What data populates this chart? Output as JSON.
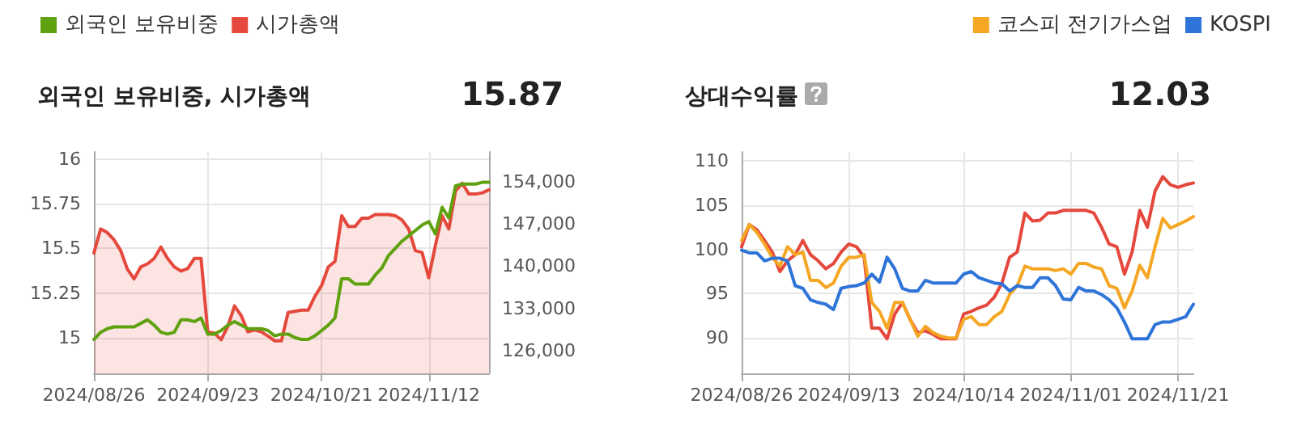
{
  "chart_data": [
    {
      "type": "line",
      "title": "외국인 보유비중, 시가총액",
      "annotations": [
        "15.87"
      ],
      "legend": "top left",
      "grid": true,
      "marker": "none",
      "line_style": "solid",
      "categories": [
        "2024/08/26",
        null,
        null,
        null,
        null,
        null,
        null,
        null,
        null,
        null,
        null,
        null,
        null,
        null,
        null,
        null,
        null,
        "2024/09/23",
        null,
        null,
        null,
        null,
        null,
        null,
        null,
        null,
        null,
        null,
        null,
        null,
        null,
        null,
        null,
        null,
        "2024/10/21",
        null,
        null,
        null,
        null,
        null,
        null,
        null,
        null,
        null,
        null,
        null,
        null,
        null,
        null,
        null,
        "2024/11/12",
        null,
        null,
        null,
        null,
        null,
        null,
        null,
        null,
        null
      ],
      "ylim": [
        14.8,
        16.04
      ],
      "yticks": [
        15,
        15.25,
        15.5,
        15.75,
        16
      ],
      "y2lim": [
        122200,
        159000
      ],
      "y2ticks": [
        {
          "value": 126000,
          "label": "126,000"
        },
        {
          "value": 133000,
          "label": "133,000"
        },
        {
          "value": 140000,
          "label": "140,000"
        },
        {
          "value": 147000,
          "label": "147,000"
        },
        {
          "value": 154000,
          "label": "154,000"
        }
      ],
      "series": [
        {
          "name": "외국인 보유비중",
          "color": "#5fa10f",
          "values": [
            14.99,
            15.03,
            15.05,
            15.06,
            15.06,
            15.06,
            15.06,
            15.08,
            15.1,
            15.07,
            15.03,
            15.02,
            15.03,
            15.1,
            15.1,
            15.09,
            15.11,
            15.02,
            15.02,
            15.04,
            15.07,
            15.09,
            15.07,
            15.05,
            15.05,
            15.05,
            15.04,
            15.01,
            15.02,
            15.02,
            15.0,
            14.99,
            14.99,
            15.01,
            15.04,
            15.07,
            15.11,
            15.33,
            15.33,
            15.3,
            15.3,
            15.3,
            15.35,
            15.39,
            15.46,
            15.5,
            15.54,
            15.57,
            15.6,
            15.63,
            15.65,
            15.58,
            15.73,
            15.67,
            15.85,
            15.86,
            15.86,
            15.86,
            15.87,
            15.87
          ]
        },
        {
          "name": "시가총액",
          "type": "area",
          "axis": "y2",
          "color": "#e5483c",
          "values": [
            142200,
            146200,
            145600,
            144400,
            142600,
            139500,
            137900,
            139900,
            140400,
            141300,
            143200,
            141300,
            139900,
            139200,
            139600,
            141300,
            141300,
            129100,
            128900,
            127800,
            130000,
            133400,
            131800,
            129100,
            129400,
            129100,
            128400,
            127600,
            127600,
            132300,
            132500,
            132700,
            132700,
            135000,
            136800,
            139900,
            140800,
            148400,
            146600,
            146600,
            148000,
            148000,
            148600,
            148600,
            148600,
            148400,
            147700,
            146200,
            142600,
            142300,
            138100,
            143500,
            148400,
            146200,
            152500,
            153800,
            152000,
            152000,
            152200,
            152700
          ]
        }
      ]
    },
    {
      "type": "line",
      "title": "상대수익률",
      "annotations": [
        "12.03"
      ],
      "legend": "top right",
      "grid": true,
      "marker": "none",
      "line_style": "solid",
      "categories": [
        "2024/08/26",
        null,
        null,
        null,
        null,
        null,
        null,
        null,
        null,
        null,
        null,
        null,
        null,
        null,
        "2024/09/13",
        null,
        null,
        null,
        null,
        null,
        null,
        null,
        null,
        null,
        null,
        null,
        null,
        null,
        null,
        "2024/10/14",
        null,
        null,
        null,
        null,
        null,
        null,
        null,
        null,
        null,
        null,
        null,
        null,
        null,
        "2024/11/01",
        null,
        null,
        null,
        null,
        null,
        null,
        null,
        null,
        null,
        null,
        null,
        null,
        null,
        "2024/11/21",
        null,
        null
      ],
      "ylim": [
        86,
        111
      ],
      "yticks": [
        90,
        95,
        100,
        105,
        110
      ],
      "series": [
        {
          "color": "#e5483c",
          "values": [
            100.3,
            102.8,
            102.2,
            101.0,
            99.7,
            97.5,
            98.7,
            99.4,
            101.0,
            99.4,
            98.7,
            97.8,
            98.4,
            99.7,
            100.6,
            100.3,
            99.1,
            91.1,
            91.1,
            89.9,
            92.7,
            94.0,
            92.1,
            90.6,
            90.8,
            90.4,
            89.9,
            89.9,
            89.9,
            92.7,
            93.0,
            93.4,
            93.7,
            94.6,
            96.2,
            99.1,
            99.7,
            104.1,
            103.2,
            103.3,
            104.1,
            104.1,
            104.4,
            104.4,
            104.4,
            104.4,
            104.1,
            102.5,
            100.6,
            100.3,
            97.2,
            99.7,
            104.4,
            102.5,
            106.6,
            108.2,
            107.3,
            107.0,
            107.3,
            107.5
          ]
        },
        {
          "name": "코스피 전기가스업",
          "color": "#f5a623",
          "values": [
            101.0,
            102.8,
            101.9,
            100.6,
            99.1,
            98.1,
            100.3,
            99.4,
            99.7,
            96.5,
            96.5,
            95.7,
            96.2,
            98.1,
            99.1,
            99.1,
            99.4,
            94.0,
            93.0,
            91.1,
            94.0,
            94.0,
            92.1,
            90.2,
            91.3,
            90.6,
            90.2,
            90.0,
            90.0,
            92.1,
            92.4,
            91.5,
            91.5,
            92.4,
            93.0,
            94.9,
            95.9,
            98.1,
            97.8,
            97.8,
            97.8,
            97.6,
            97.8,
            97.2,
            98.4,
            98.4,
            98.0,
            97.8,
            95.9,
            95.6,
            93.4,
            95.3,
            98.2,
            96.8,
            100.3,
            103.5,
            102.4,
            102.8,
            103.2,
            103.7
          ]
        },
        {
          "name": "KOSPI",
          "color": "#2f74d8",
          "values": [
            99.9,
            99.6,
            99.6,
            98.7,
            99.0,
            99.0,
            98.7,
            95.9,
            95.6,
            94.3,
            94.0,
            93.8,
            93.2,
            95.6,
            95.8,
            95.9,
            96.2,
            97.2,
            96.3,
            99.1,
            97.8,
            95.6,
            95.3,
            95.3,
            96.5,
            96.2,
            96.2,
            96.2,
            96.2,
            97.2,
            97.5,
            96.8,
            96.5,
            96.2,
            96.1,
            95.3,
            95.9,
            95.7,
            95.7,
            96.8,
            96.8,
            95.9,
            94.4,
            94.3,
            95.7,
            95.3,
            95.3,
            94.9,
            94.3,
            93.4,
            91.8,
            89.9,
            89.9,
            89.9,
            91.5,
            91.8,
            91.8,
            92.1,
            92.4,
            93.8
          ]
        }
      ]
    }
  ]
}
